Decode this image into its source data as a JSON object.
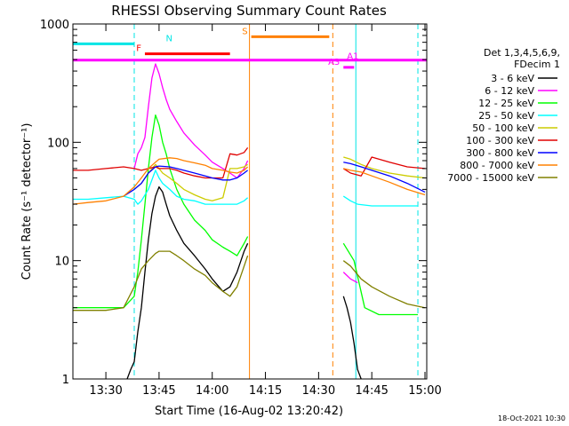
{
  "chart_data": {
    "type": "line",
    "title": "RHESSI Observing Summary Count Rates",
    "xlabel": "Start Time (16-Aug-02 13:20:42)",
    "ylabel": "Count Rate (s⁻¹ detector⁻¹)",
    "yscale": "log",
    "ylim": [
      1,
      1000
    ],
    "xlim": [
      "13:20:42",
      "15:00:30"
    ],
    "xticks": [
      "13:30",
      "13:45",
      "14:00",
      "14:15",
      "14:30",
      "14:45",
      "15:00"
    ],
    "yticks": [
      "1",
      "10",
      "100",
      "1000"
    ],
    "legend_header": [
      "Det 1,3,4,5,6,9,",
      "FDecim 1"
    ],
    "legend_position": "right",
    "timestamp": "18-Oct-2021 10:30",
    "flags": [
      {
        "label": "N",
        "color": "#00e5e5",
        "style": "bar",
        "start": "13:20:42",
        "end": "13:38:00",
        "level": 680
      },
      {
        "label": "F",
        "color": "#ff0000",
        "style": "bar",
        "start": "13:41:00",
        "end": "14:05:00",
        "level": 560
      },
      {
        "label": "S",
        "color": "#ff8000",
        "style": "bar",
        "start": "14:11:00",
        "end": "14:33:00",
        "level": 780
      },
      {
        "label": "A1",
        "color": "#ff00ff",
        "style": "bar",
        "start": "13:20:42",
        "end": "15:00:30",
        "level": 495
      },
      {
        "label": "A3",
        "color": "#ff00ff",
        "style": "bar",
        "start": "14:37:00",
        "end": "14:40:00",
        "level": 430
      }
    ],
    "markers": [
      {
        "time": "13:38:00",
        "color": "#00e5e5",
        "dash": true
      },
      {
        "time": "14:10:30",
        "color": "#ff8000",
        "dash": false
      },
      {
        "time": "14:34:00",
        "color": "#ff8000",
        "dash": true
      },
      {
        "time": "14:40:30",
        "color": "#00e5e5",
        "dash": false
      },
      {
        "time": "14:58:00",
        "color": "#00e5e5",
        "dash": true
      }
    ],
    "series": [
      {
        "name": "3 - 6 keV",
        "color": "#000000",
        "points": [
          [
            "13:36:00",
            1.0
          ],
          [
            "13:37:00",
            1.2
          ],
          [
            "13:38:00",
            1.4
          ],
          [
            "13:39:00",
            2.5
          ],
          [
            "13:40:00",
            4
          ],
          [
            "13:41:00",
            8
          ],
          [
            "13:42:00",
            15
          ],
          [
            "13:43:00",
            25
          ],
          [
            "13:44:00",
            35
          ],
          [
            "13:45:00",
            42
          ],
          [
            "13:46:00",
            38
          ],
          [
            "13:47:00",
            30
          ],
          [
            "13:48:00",
            24
          ],
          [
            "13:50:00",
            18
          ],
          [
            "13:52:00",
            14
          ],
          [
            "13:55:00",
            11
          ],
          [
            "13:58:00",
            8.5
          ],
          [
            "14:00:00",
            7
          ],
          [
            "14:03:00",
            5.5
          ],
          [
            "14:05:00",
            6
          ],
          [
            "14:07:00",
            8
          ],
          [
            "14:09:00",
            12
          ],
          [
            "14:10:00",
            14
          ],
          null,
          [
            "14:37:00",
            5
          ],
          [
            "14:38:00",
            4
          ],
          [
            "14:39:00",
            3
          ],
          [
            "14:40:00",
            2
          ],
          [
            "14:41:00",
            1.2
          ],
          [
            "14:42:00",
            1.0
          ]
        ]
      },
      {
        "name": "6 - 12 keV",
        "color": "#ff00ff",
        "points": [
          [
            "13:38:00",
            60
          ],
          [
            "13:39:00",
            80
          ],
          [
            "13:40:00",
            90
          ],
          [
            "13:41:00",
            110
          ],
          [
            "13:42:00",
            200
          ],
          [
            "13:43:00",
            350
          ],
          [
            "13:44:00",
            460
          ],
          [
            "13:45:00",
            380
          ],
          [
            "13:46:00",
            290
          ],
          [
            "13:47:00",
            230
          ],
          [
            "13:48:00",
            190
          ],
          [
            "13:50:00",
            150
          ],
          [
            "13:52:00",
            120
          ],
          [
            "13:55:00",
            95
          ],
          [
            "13:58:00",
            78
          ],
          [
            "14:00:00",
            68
          ],
          [
            "14:03:00",
            60
          ],
          [
            "14:05:00",
            55
          ],
          [
            "14:07:00",
            50
          ],
          [
            "14:09:00",
            60
          ],
          [
            "14:10:00",
            70
          ],
          null,
          [
            "14:37:00",
            8
          ],
          [
            "14:39:00",
            7
          ],
          [
            "14:41:00",
            6.5
          ]
        ]
      },
      {
        "name": "12 - 25 keV",
        "color": "#00ff00",
        "points": [
          [
            "13:20:42",
            4
          ],
          [
            "13:25:00",
            4
          ],
          [
            "13:30:00",
            4
          ],
          [
            "13:35:00",
            4
          ],
          [
            "13:38:00",
            5
          ],
          [
            "13:39:00",
            8
          ],
          [
            "13:40:00",
            15
          ],
          [
            "13:41:00",
            30
          ],
          [
            "13:42:00",
            60
          ],
          [
            "13:43:00",
            110
          ],
          [
            "13:44:00",
            170
          ],
          [
            "13:45:00",
            140
          ],
          [
            "13:46:00",
            100
          ],
          [
            "13:47:00",
            80
          ],
          [
            "13:48:00",
            60
          ],
          [
            "13:50:00",
            40
          ],
          [
            "13:52:00",
            30
          ],
          [
            "13:55:00",
            22
          ],
          [
            "13:58:00",
            18
          ],
          [
            "14:00:00",
            15
          ],
          [
            "14:03:00",
            13
          ],
          [
            "14:05:00",
            12
          ],
          [
            "14:07:00",
            11
          ],
          [
            "14:09:00",
            14
          ],
          [
            "14:10:00",
            16
          ],
          null,
          [
            "14:37:00",
            14
          ],
          [
            "14:40:00",
            10
          ],
          [
            "14:43:00",
            4
          ],
          [
            "14:47:00",
            3.5
          ],
          [
            "14:52:00",
            3.5
          ],
          [
            "14:58:00",
            3.5
          ]
        ]
      },
      {
        "name": "25 - 50 keV",
        "color": "#00ffff",
        "points": [
          [
            "13:20:42",
            33
          ],
          [
            "13:25:00",
            33
          ],
          [
            "13:30:00",
            34
          ],
          [
            "13:35:00",
            35
          ],
          [
            "13:38:00",
            33
          ],
          [
            "13:39:00",
            30
          ],
          [
            "13:40:00",
            32
          ],
          [
            "13:42:00",
            40
          ],
          [
            "13:44:00",
            58
          ],
          [
            "13:45:00",
            50
          ],
          [
            "13:46:00",
            45
          ],
          [
            "13:48:00",
            40
          ],
          [
            "13:50:00",
            35
          ],
          [
            "13:52:00",
            33
          ],
          [
            "13:55:00",
            32
          ],
          [
            "13:58:00",
            30
          ],
          [
            "14:00:00",
            30
          ],
          [
            "14:03:00",
            30
          ],
          [
            "14:05:00",
            30
          ],
          [
            "14:07:00",
            30
          ],
          [
            "14:09:00",
            32
          ],
          [
            "14:10:00",
            34
          ],
          null,
          [
            "14:37:00",
            35
          ],
          [
            "14:39:00",
            32
          ],
          [
            "14:41:00",
            30
          ],
          [
            "14:45:00",
            29
          ],
          [
            "14:50:00",
            29
          ],
          [
            "14:55:00",
            29
          ],
          [
            "14:58:00",
            29
          ]
        ]
      },
      {
        "name": "50 - 100 keV",
        "color": "#cccc00",
        "points": [
          [
            "13:38:00",
            40
          ],
          [
            "13:40:00",
            45
          ],
          [
            "13:42:00",
            55
          ],
          [
            "13:44:00",
            65
          ],
          [
            "13:45:00",
            60
          ],
          [
            "13:46:00",
            55
          ],
          [
            "13:48:00",
            50
          ],
          [
            "13:50:00",
            45
          ],
          [
            "13:52:00",
            40
          ],
          [
            "13:55:00",
            36
          ],
          [
            "13:58:00",
            33
          ],
          [
            "14:00:00",
            32
          ],
          [
            "14:03:00",
            34
          ],
          [
            "14:05:00",
            60
          ],
          [
            "14:07:00",
            60
          ],
          [
            "14:09:00",
            62
          ],
          [
            "14:10:00",
            65
          ],
          null,
          [
            "14:37:00",
            75
          ],
          [
            "14:39:00",
            72
          ],
          [
            "14:42:00",
            65
          ],
          [
            "14:45:00",
            60
          ],
          [
            "14:50:00",
            55
          ],
          [
            "14:55:00",
            52
          ],
          [
            "15:00:00",
            50
          ]
        ]
      },
      {
        "name": "100 - 300 keV",
        "color": "#e00000",
        "points": [
          [
            "13:20:42",
            58
          ],
          [
            "13:25:00",
            58
          ],
          [
            "13:30:00",
            60
          ],
          [
            "13:35:00",
            62
          ],
          [
            "13:38:00",
            60
          ],
          [
            "13:40:00",
            58
          ],
          [
            "13:42:00",
            60
          ],
          [
            "13:44:00",
            62
          ],
          [
            "13:45:00",
            60
          ],
          [
            "13:48:00",
            60
          ],
          [
            "13:50:00",
            58
          ],
          [
            "13:52:00",
            55
          ],
          [
            "13:55:00",
            52
          ],
          [
            "13:58:00",
            50
          ],
          [
            "14:00:00",
            50
          ],
          [
            "14:03:00",
            50
          ],
          [
            "14:05:00",
            80
          ],
          [
            "14:07:00",
            78
          ],
          [
            "14:09:00",
            82
          ],
          [
            "14:10:00",
            90
          ],
          null,
          [
            "14:37:00",
            60
          ],
          [
            "14:39:00",
            55
          ],
          [
            "14:42:00",
            52
          ],
          [
            "14:45:00",
            75
          ],
          [
            "14:50:00",
            68
          ],
          [
            "14:55:00",
            62
          ],
          [
            "15:00:00",
            60
          ]
        ]
      },
      {
        "name": "300 - 800 keV",
        "color": "#0000ff",
        "points": [
          [
            "13:35:00",
            35
          ],
          [
            "13:38:00",
            40
          ],
          [
            "13:40:00",
            45
          ],
          [
            "13:42:00",
            55
          ],
          [
            "13:44:00",
            62
          ],
          [
            "13:45:00",
            63
          ],
          [
            "13:48:00",
            62
          ],
          [
            "13:50:00",
            60
          ],
          [
            "13:52:00",
            58
          ],
          [
            "13:55:00",
            55
          ],
          [
            "13:58:00",
            52
          ],
          [
            "14:00:00",
            50
          ],
          [
            "14:03:00",
            48
          ],
          [
            "14:05:00",
            48
          ],
          [
            "14:07:00",
            50
          ],
          [
            "14:09:00",
            55
          ],
          [
            "14:10:00",
            58
          ],
          null,
          [
            "14:37:00",
            68
          ],
          [
            "14:39:00",
            66
          ],
          [
            "14:42:00",
            62
          ],
          [
            "14:45:00",
            58
          ],
          [
            "14:50:00",
            52
          ],
          [
            "14:55:00",
            45
          ],
          [
            "15:00:00",
            38
          ]
        ]
      },
      {
        "name": "800 - 7000 keV",
        "color": "#ff8000",
        "points": [
          [
            "13:20:42",
            30
          ],
          [
            "13:25:00",
            31
          ],
          [
            "13:30:00",
            32
          ],
          [
            "13:35:00",
            35
          ],
          [
            "13:38:00",
            42
          ],
          [
            "13:40:00",
            50
          ],
          [
            "13:42:00",
            60
          ],
          [
            "13:44:00",
            68
          ],
          [
            "13:45:00",
            72
          ],
          [
            "13:48:00",
            74
          ],
          [
            "13:50:00",
            73
          ],
          [
            "13:52:00",
            70
          ],
          [
            "13:55:00",
            67
          ],
          [
            "13:58:00",
            64
          ],
          [
            "14:00:00",
            60
          ],
          [
            "14:03:00",
            58
          ],
          [
            "14:05:00",
            56
          ],
          [
            "14:07:00",
            55
          ],
          [
            "14:09:00",
            58
          ],
          [
            "14:10:00",
            62
          ],
          null,
          [
            "14:37:00",
            60
          ],
          [
            "14:39:00",
            58
          ],
          [
            "14:42:00",
            56
          ],
          [
            "14:45:00",
            52
          ],
          [
            "14:50:00",
            46
          ],
          [
            "14:55:00",
            40
          ],
          [
            "15:00:00",
            36
          ]
        ]
      },
      {
        "name": "7000 - 15000 keV",
        "color": "#808000",
        "points": [
          [
            "13:20:42",
            3.8
          ],
          [
            "13:25:00",
            3.8
          ],
          [
            "13:30:00",
            3.8
          ],
          [
            "13:35:00",
            4
          ],
          [
            "13:38:00",
            6
          ],
          [
            "13:40:00",
            8.5
          ],
          [
            "13:42:00",
            10
          ],
          [
            "13:44:00",
            11.5
          ],
          [
            "13:45:00",
            12
          ],
          [
            "13:48:00",
            12
          ],
          [
            "13:50:00",
            11
          ],
          [
            "13:52:00",
            10
          ],
          [
            "13:55:00",
            8.5
          ],
          [
            "13:58:00",
            7.5
          ],
          [
            "14:00:00",
            6.5
          ],
          [
            "14:03:00",
            5.5
          ],
          [
            "14:05:00",
            5
          ],
          [
            "14:07:00",
            6
          ],
          [
            "14:09:00",
            9
          ],
          [
            "14:10:00",
            11
          ],
          null,
          [
            "14:37:00",
            10
          ],
          [
            "14:39:00",
            9
          ],
          [
            "14:42:00",
            7
          ],
          [
            "14:45:00",
            6
          ],
          [
            "14:50:00",
            5
          ],
          [
            "14:55:00",
            4.3
          ],
          [
            "15:00:00",
            4
          ]
        ]
      }
    ]
  }
}
